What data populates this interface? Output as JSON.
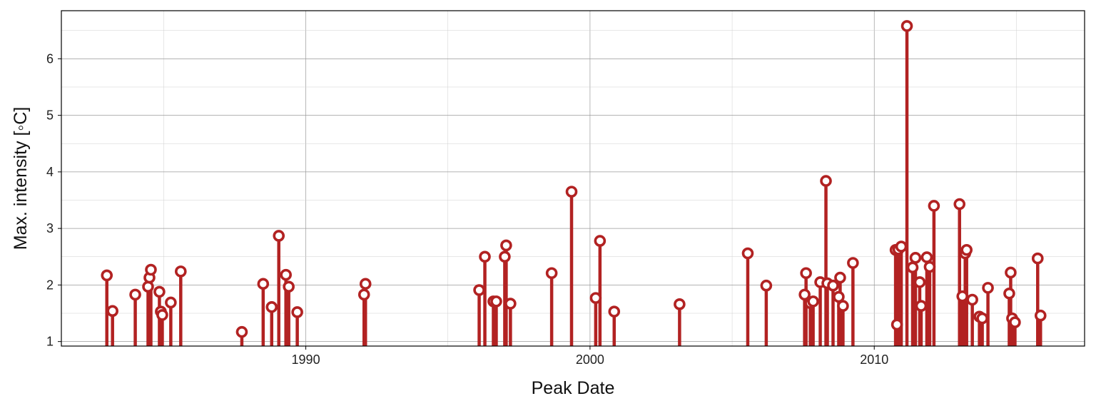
{
  "chart_data": {
    "type": "lollipop",
    "title": "",
    "xlabel": "Peak Date",
    "ylabel": "Max. intensity [◦C]",
    "x_type": "year",
    "xlim": [
      1981.4,
      2017.4
    ],
    "ylim": [
      0.92,
      6.85
    ],
    "xticks": [
      1990,
      2000,
      2010
    ],
    "xtick_labels": [
      "1990",
      "2000",
      "2010"
    ],
    "yticks": [
      1,
      2,
      3,
      4,
      5,
      6
    ],
    "ytick_labels": [
      "1",
      "2",
      "3",
      "4",
      "5",
      "6"
    ],
    "grid": true,
    "legend": "none",
    "baseline": 0.92,
    "colors": {
      "stem": "#b22222",
      "marker_edge": "#b22222",
      "marker_fill": "#ffffff"
    },
    "points": [
      {
        "x": 1983.0,
        "y": 2.17
      },
      {
        "x": 1983.2,
        "y": 1.54
      },
      {
        "x": 1984.0,
        "y": 1.83
      },
      {
        "x": 1984.45,
        "y": 1.97
      },
      {
        "x": 1984.5,
        "y": 2.13
      },
      {
        "x": 1984.55,
        "y": 2.27
      },
      {
        "x": 1984.85,
        "y": 1.88
      },
      {
        "x": 1984.9,
        "y": 1.53
      },
      {
        "x": 1984.95,
        "y": 1.47
      },
      {
        "x": 1985.25,
        "y": 1.69
      },
      {
        "x": 1985.6,
        "y": 2.24
      },
      {
        "x": 1987.75,
        "y": 1.17
      },
      {
        "x": 1988.5,
        "y": 2.02
      },
      {
        "x": 1988.8,
        "y": 1.61
      },
      {
        "x": 1989.05,
        "y": 2.87
      },
      {
        "x": 1989.3,
        "y": 2.18
      },
      {
        "x": 1989.4,
        "y": 1.97
      },
      {
        "x": 1989.7,
        "y": 1.52
      },
      {
        "x": 1992.05,
        "y": 1.83
      },
      {
        "x": 1992.1,
        "y": 2.02
      },
      {
        "x": 1996.1,
        "y": 1.91
      },
      {
        "x": 1996.3,
        "y": 2.5
      },
      {
        "x": 1996.6,
        "y": 1.71
      },
      {
        "x": 1996.7,
        "y": 1.71
      },
      {
        "x": 1997.0,
        "y": 2.5
      },
      {
        "x": 1997.05,
        "y": 2.7
      },
      {
        "x": 1997.2,
        "y": 1.67
      },
      {
        "x": 1998.65,
        "y": 2.21
      },
      {
        "x": 1999.35,
        "y": 3.65
      },
      {
        "x": 2000.2,
        "y": 1.77
      },
      {
        "x": 2000.35,
        "y": 2.78
      },
      {
        "x": 2000.85,
        "y": 1.53
      },
      {
        "x": 2003.15,
        "y": 1.66
      },
      {
        "x": 2005.55,
        "y": 2.56
      },
      {
        "x": 2006.2,
        "y": 1.99
      },
      {
        "x": 2007.55,
        "y": 1.83
      },
      {
        "x": 2007.6,
        "y": 2.21
      },
      {
        "x": 2007.75,
        "y": 1.68
      },
      {
        "x": 2007.85,
        "y": 1.71
      },
      {
        "x": 2008.1,
        "y": 2.05
      },
      {
        "x": 2008.3,
        "y": 3.84
      },
      {
        "x": 2008.35,
        "y": 2.03
      },
      {
        "x": 2008.55,
        "y": 1.99
      },
      {
        "x": 2008.75,
        "y": 1.79
      },
      {
        "x": 2008.8,
        "y": 2.13
      },
      {
        "x": 2008.9,
        "y": 1.63
      },
      {
        "x": 2009.25,
        "y": 2.39
      },
      {
        "x": 2010.75,
        "y": 2.62
      },
      {
        "x": 2010.8,
        "y": 1.3
      },
      {
        "x": 2010.85,
        "y": 2.63
      },
      {
        "x": 2010.95,
        "y": 2.68
      },
      {
        "x": 2011.15,
        "y": 6.58
      },
      {
        "x": 2011.35,
        "y": 2.31
      },
      {
        "x": 2011.45,
        "y": 2.48
      },
      {
        "x": 2011.6,
        "y": 2.05
      },
      {
        "x": 2011.65,
        "y": 1.63
      },
      {
        "x": 2011.85,
        "y": 2.49
      },
      {
        "x": 2011.95,
        "y": 2.32
      },
      {
        "x": 2012.1,
        "y": 3.4
      },
      {
        "x": 2013.0,
        "y": 3.43
      },
      {
        "x": 2013.1,
        "y": 1.8
      },
      {
        "x": 2013.2,
        "y": 2.56
      },
      {
        "x": 2013.25,
        "y": 2.62
      },
      {
        "x": 2013.45,
        "y": 1.74
      },
      {
        "x": 2013.7,
        "y": 1.44
      },
      {
        "x": 2013.8,
        "y": 1.41
      },
      {
        "x": 2014.0,
        "y": 1.95
      },
      {
        "x": 2014.75,
        "y": 1.85
      },
      {
        "x": 2014.8,
        "y": 2.22
      },
      {
        "x": 2014.85,
        "y": 1.41
      },
      {
        "x": 2014.95,
        "y": 1.34
      },
      {
        "x": 2015.75,
        "y": 2.47
      },
      {
        "x": 2015.85,
        "y": 1.46
      }
    ]
  }
}
